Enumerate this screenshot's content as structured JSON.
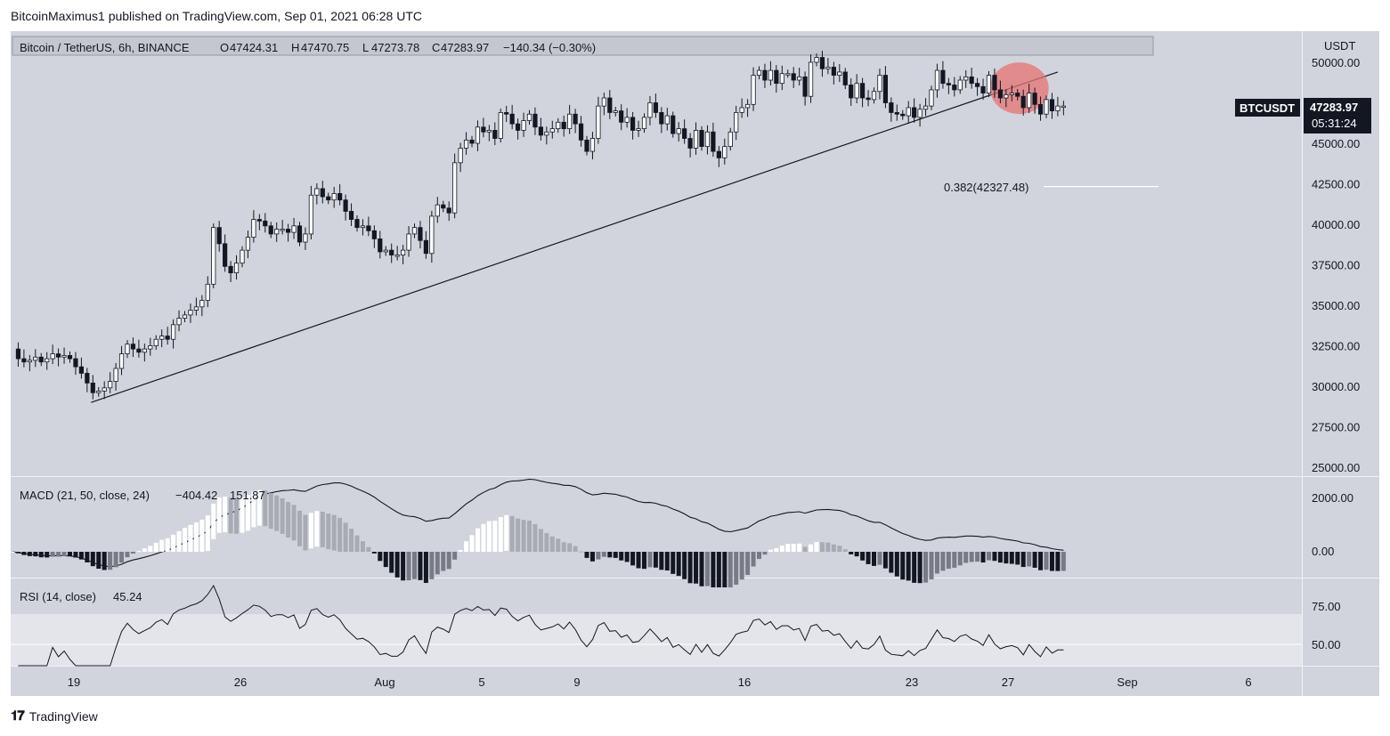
{
  "header": {
    "publisher_line": "BitcoinMaximus1 published on TradingView.com, Sep 01, 2021 06:28 UTC"
  },
  "footer": {
    "brand": "TradingView",
    "logo_icon": "tradingview-logo-icon"
  },
  "chart_data": {
    "type": "candlestick",
    "symbol_line": "Bitcoin / TetherUS, 6h, BINANCE",
    "ohlc": {
      "o_label": "O",
      "o": "47424.31",
      "h_label": "H",
      "h": "47470.75",
      "l_label": "L",
      "l": "47273.78",
      "c_label": "C",
      "c": "47283.97",
      "change": "−140.34 (−0.30%)"
    },
    "currency": "USDT",
    "last_price": {
      "ticker": "BTCUSDT",
      "price": "47283.97",
      "countdown": "05:31:24"
    },
    "price_axis": {
      "min": 24500,
      "max": 51500,
      "ticks": [
        "50000.00",
        "47500.00",
        "45000.00",
        "42500.00",
        "40000.00",
        "37500.00",
        "35000.00",
        "32500.00",
        "30000.00",
        "27500.00",
        "25000.00"
      ]
    },
    "x_ticks": [
      "19",
      "26",
      "Aug",
      "5",
      "9",
      "16",
      "23",
      "27",
      "Sep",
      "6"
    ],
    "closes": [
      32300,
      31700,
      31500,
      31600,
      31800,
      31500,
      31700,
      32000,
      31800,
      31900,
      31700,
      31200,
      30800,
      30200,
      29600,
      29700,
      29900,
      30300,
      31100,
      32000,
      32600,
      32300,
      32100,
      32300,
      32500,
      32900,
      33100,
      32900,
      33800,
      34200,
      34400,
      34700,
      34900,
      35300,
      36300,
      39800,
      38800,
      37400,
      37000,
      37600,
      38400,
      39200,
      40300,
      40200,
      39900,
      39400,
      39700,
      39700,
      39500,
      39900,
      38900,
      39400,
      41800,
      42200,
      41700,
      41500,
      41900,
      41500,
      40800,
      40300,
      39800,
      39900,
      39600,
      39100,
      38300,
      38400,
      38100,
      38100,
      38400,
      39400,
      39800,
      39000,
      38200,
      40500,
      41200,
      41000,
      40700,
      43800,
      44700,
      45200,
      45000,
      46000,
      45700,
      45800,
      45300,
      46900,
      46800,
      46200,
      45800,
      46400,
      46800,
      46000,
      45500,
      45700,
      45900,
      46300,
      45900,
      46800,
      46200,
      45200,
      44500,
      45300,
      47300,
      47800,
      46900,
      47000,
      46300,
      46600,
      45800,
      45900,
      46600,
      47500,
      46900,
      46200,
      46700,
      45600,
      45900,
      45300,
      44700,
      45800,
      44800,
      45700,
      44500,
      44100,
      44800,
      45700,
      46900,
      47200,
      47400,
      49200,
      49500,
      48900,
      49500,
      48700,
      49300,
      49300,
      48900,
      49100,
      47900,
      50000,
      50300,
      49600,
      49700,
      49200,
      49400,
      48600,
      47800,
      48700,
      47800,
      47700,
      48200,
      49200,
      47500,
      46900,
      46800,
      46700,
      47200,
      46600,
      47100,
      47300,
      48300,
      49500,
      48700,
      48600,
      48300,
      48900,
      49100,
      48700,
      48500,
      48100,
      49200,
      48300,
      47800,
      48000,
      48100,
      47900,
      47200,
      48100,
      47400,
      46800,
      47700,
      47000,
      47300,
      47300
    ],
    "trendline": {
      "start_index": 14,
      "start_price": 29000,
      "end_index": 182,
      "end_price": 49400
    },
    "fib": {
      "label": "0.382(42327.48)",
      "price": 42327.48
    },
    "highlight": {
      "note_color": "#e57373",
      "from_index": 170,
      "to_index": 180
    },
    "macd": {
      "label": "MACD (21, 50, close, 24)",
      "value1": "−404.42",
      "value2": "151.87",
      "ticks": [
        "2000.00",
        "0.00"
      ]
    },
    "rsi": {
      "label": "RSI (14, close)",
      "value": "45.24",
      "ticks": [
        "75.00",
        "50.00"
      ],
      "band_upper": 70,
      "band_lower": 30
    }
  }
}
